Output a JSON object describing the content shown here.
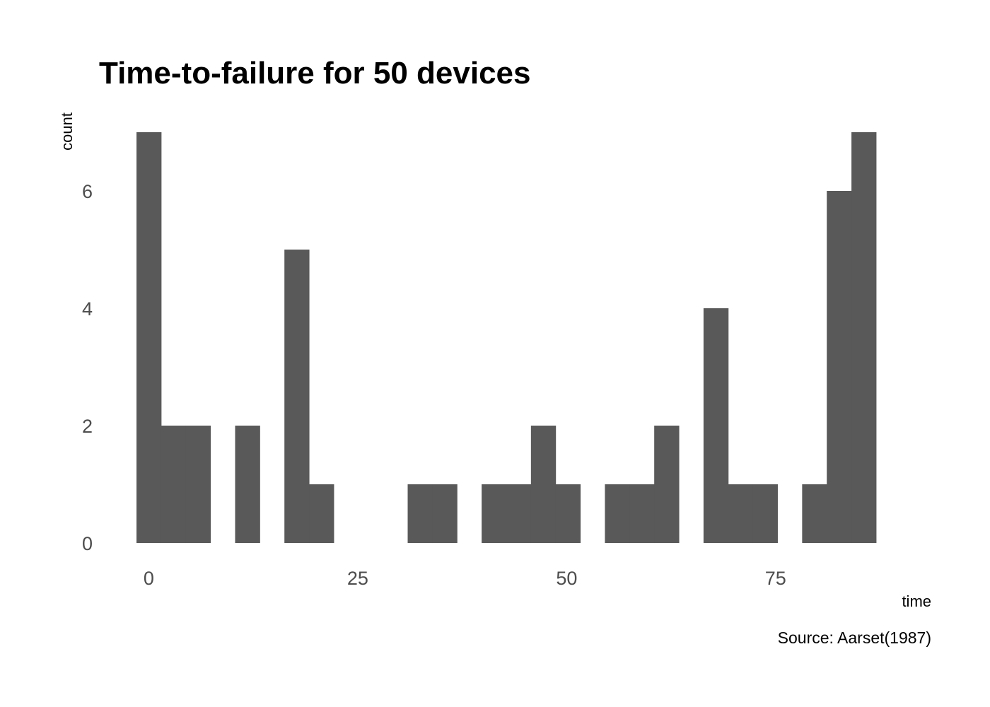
{
  "chart_data": {
    "type": "bar",
    "title": "Time-to-failure for 50 devices",
    "xlabel": "time",
    "ylabel": "count",
    "caption": "Source: Aarset(1987)",
    "bar_color": "#595959",
    "background": "#ffffff",
    "grid": false,
    "bin_width": 2.95,
    "bin_start": -1.475,
    "values": [
      7,
      2,
      2,
      0,
      2,
      0,
      5,
      1,
      0,
      0,
      0,
      1,
      1,
      0,
      1,
      1,
      2,
      1,
      0,
      1,
      1,
      2,
      0,
      4,
      1,
      1,
      0,
      1,
      6,
      7
    ],
    "xlim": [
      -3.0,
      90.5
    ],
    "ylim": [
      0,
      7
    ],
    "xticks": [
      0,
      25,
      50,
      75
    ],
    "xtick_labels": [
      "0",
      "25",
      "50",
      "75"
    ],
    "yticks": [
      0,
      2,
      4,
      6
    ],
    "ytick_labels": [
      "0",
      "2",
      "4",
      "6"
    ]
  }
}
